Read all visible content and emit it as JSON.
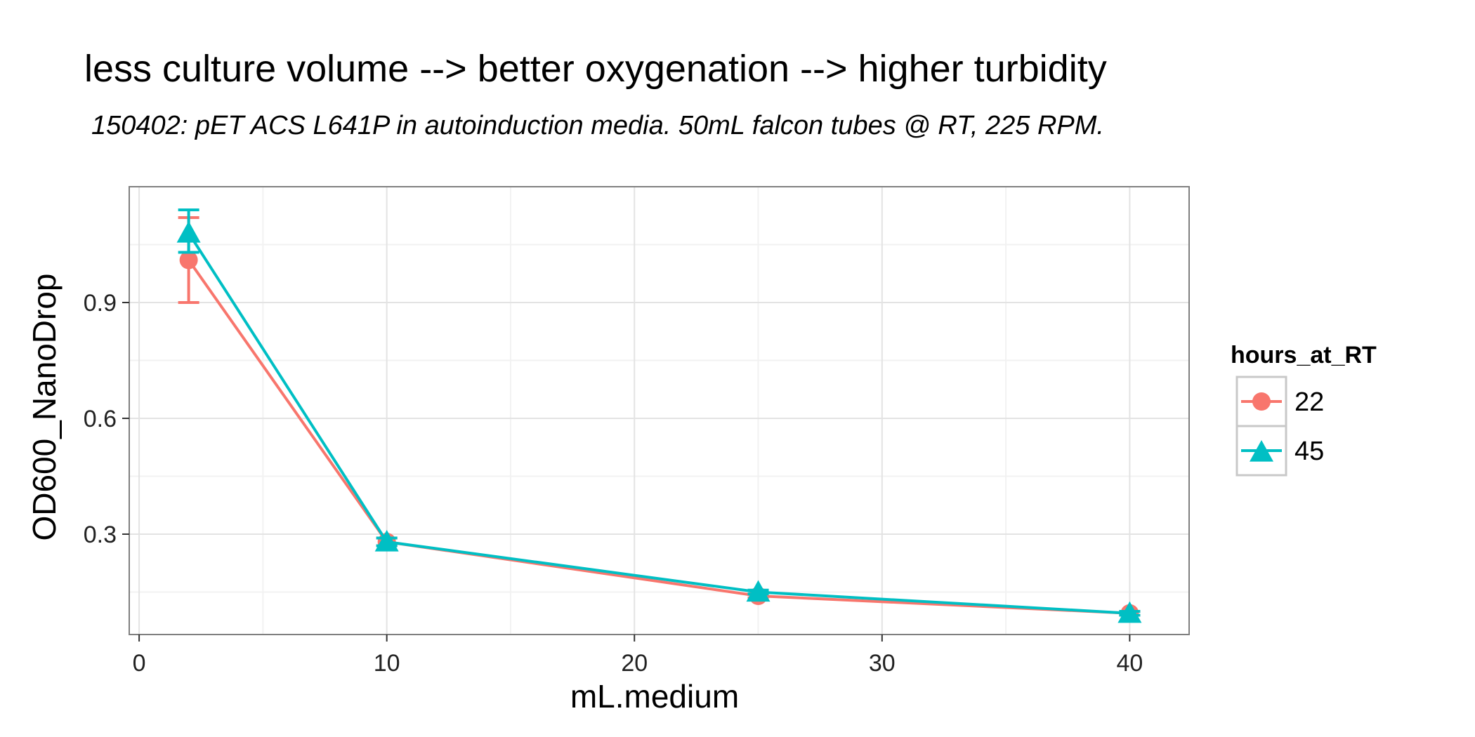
{
  "chart_data": {
    "type": "line",
    "title": "less culture volume --> better oxygenation --> higher turbidity",
    "subtitle": "150402: pET ACS L641P in autoinduction media. 50mL falcon tubes @ RT, 225 RPM.",
    "xlabel": "mL.medium",
    "ylabel": "OD600_NanoDrop",
    "xlim": [
      -0.4,
      42.4
    ],
    "ylim": [
      0.04,
      1.2
    ],
    "x_ticks": [
      0,
      10,
      20,
      30,
      40
    ],
    "x_tick_labels": [
      "0",
      "10",
      "20",
      "30",
      "40"
    ],
    "y_ticks": [
      0.3,
      0.6,
      0.9
    ],
    "y_tick_labels": [
      "0.3",
      "0.6",
      "0.9"
    ],
    "grid": true,
    "legend": {
      "title": "hours_at_RT",
      "position": "right"
    },
    "series": [
      {
        "name": "22",
        "color": "#F8766D",
        "marker": "circle",
        "points": [
          {
            "x": 2,
            "y": 1.01,
            "ymin": 0.9,
            "ymax": 1.12
          },
          {
            "x": 10,
            "y": 0.28,
            "ymin": 0.27,
            "ymax": 0.29
          },
          {
            "x": 25,
            "y": 0.14,
            "ymin": 0.135,
            "ymax": 0.145
          },
          {
            "x": 40,
            "y": 0.095,
            "ymin": 0.09,
            "ymax": 0.1
          }
        ]
      },
      {
        "name": "45",
        "color": "#00BFC4",
        "marker": "triangle",
        "points": [
          {
            "x": 2,
            "y": 1.08,
            "ymin": 1.03,
            "ymax": 1.14
          },
          {
            "x": 10,
            "y": 0.28,
            "ymin": 0.27,
            "ymax": 0.29
          },
          {
            "x": 25,
            "y": 0.15,
            "ymin": 0.145,
            "ymax": 0.155
          },
          {
            "x": 40,
            "y": 0.095,
            "ymin": 0.09,
            "ymax": 0.1
          }
        ]
      }
    ]
  }
}
